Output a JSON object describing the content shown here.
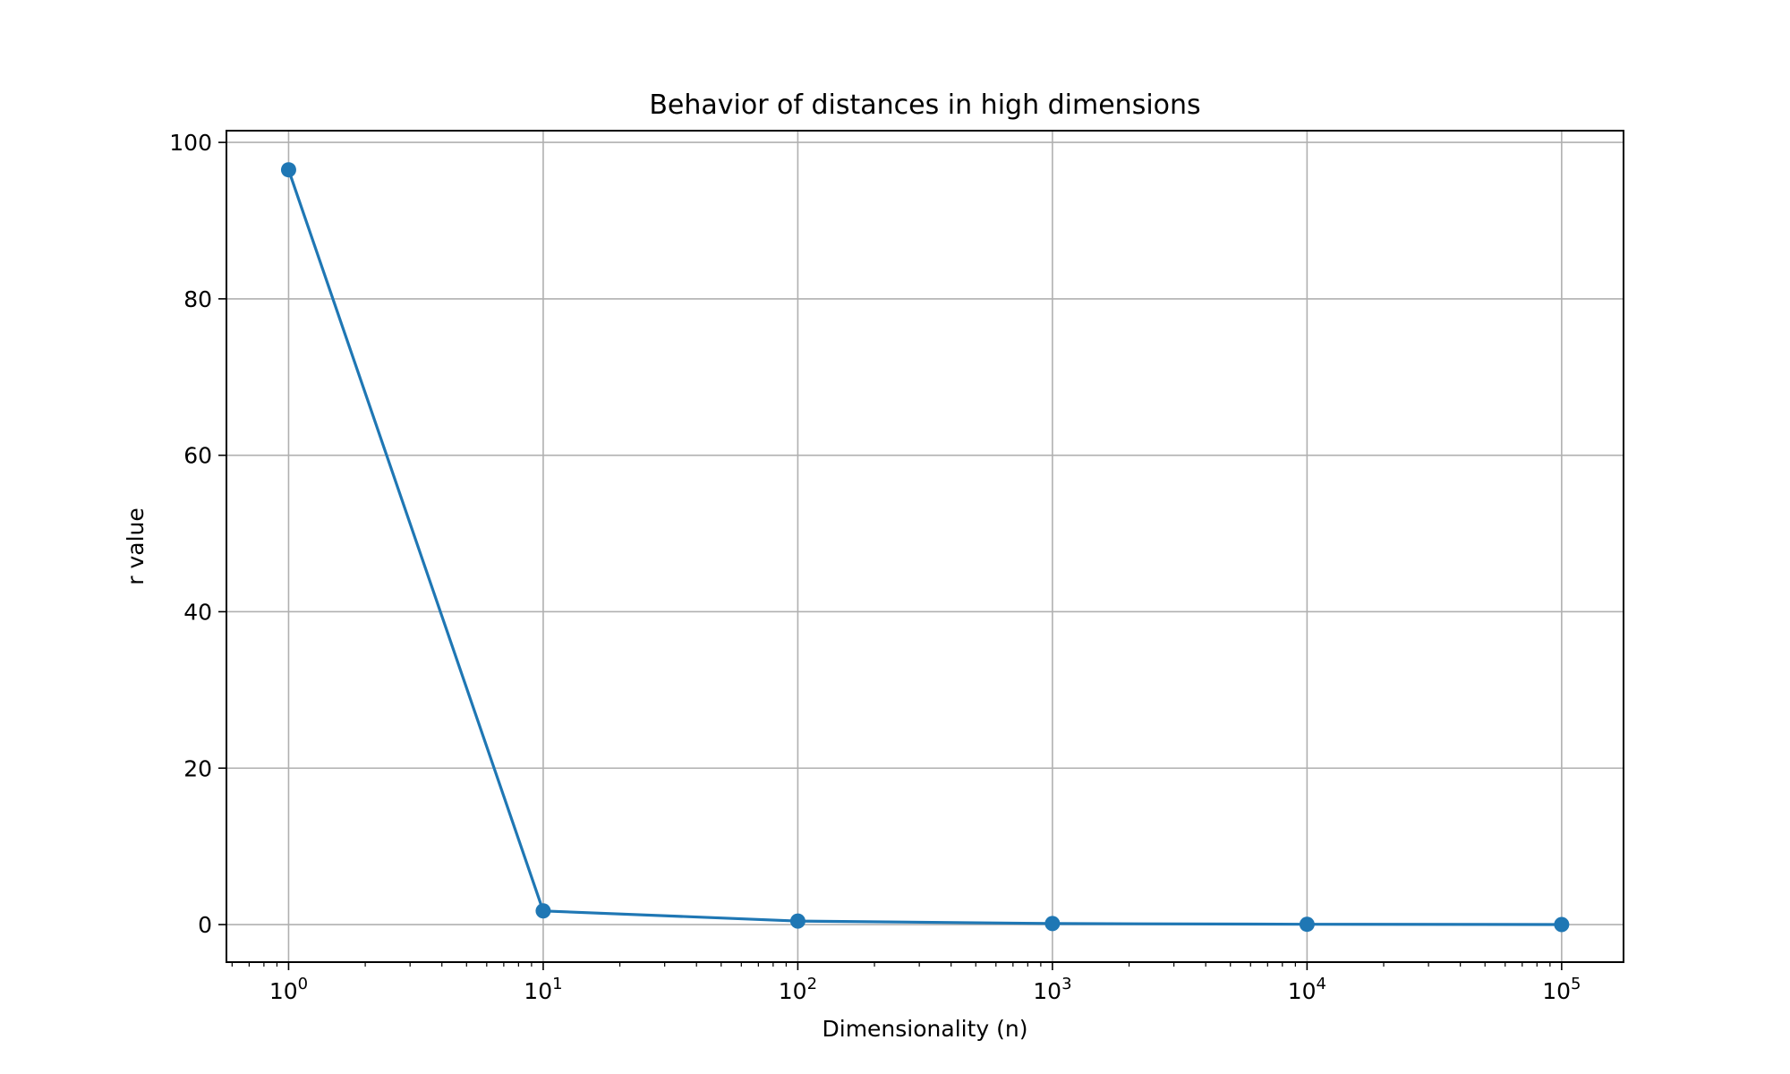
{
  "chart_data": {
    "type": "line",
    "title": "Behavior of distances in high dimensions",
    "xlabel": "Dimensionality (n)",
    "ylabel": "r value",
    "x_scale": "log",
    "xlim": [
      0.57,
      175000.0
    ],
    "ylim": [
      -4.8,
      101.5
    ],
    "grid": true,
    "x_ticks": [
      {
        "value": 1,
        "base": "10",
        "exp": "0"
      },
      {
        "value": 10,
        "base": "10",
        "exp": "1"
      },
      {
        "value": 100,
        "base": "10",
        "exp": "2"
      },
      {
        "value": 1000,
        "base": "10",
        "exp": "3"
      },
      {
        "value": 10000,
        "base": "10",
        "exp": "4"
      },
      {
        "value": 100000,
        "base": "10",
        "exp": "5"
      }
    ],
    "y_ticks": [
      0,
      20,
      40,
      60,
      80,
      100
    ],
    "series": [
      {
        "color": "#1f77b4",
        "marker": "circle",
        "x": [
          1,
          10,
          100,
          1000,
          10000,
          100000
        ],
        "y": [
          96.5,
          1.75,
          0.45,
          0.13,
          0.04,
          0.01
        ]
      }
    ]
  }
}
